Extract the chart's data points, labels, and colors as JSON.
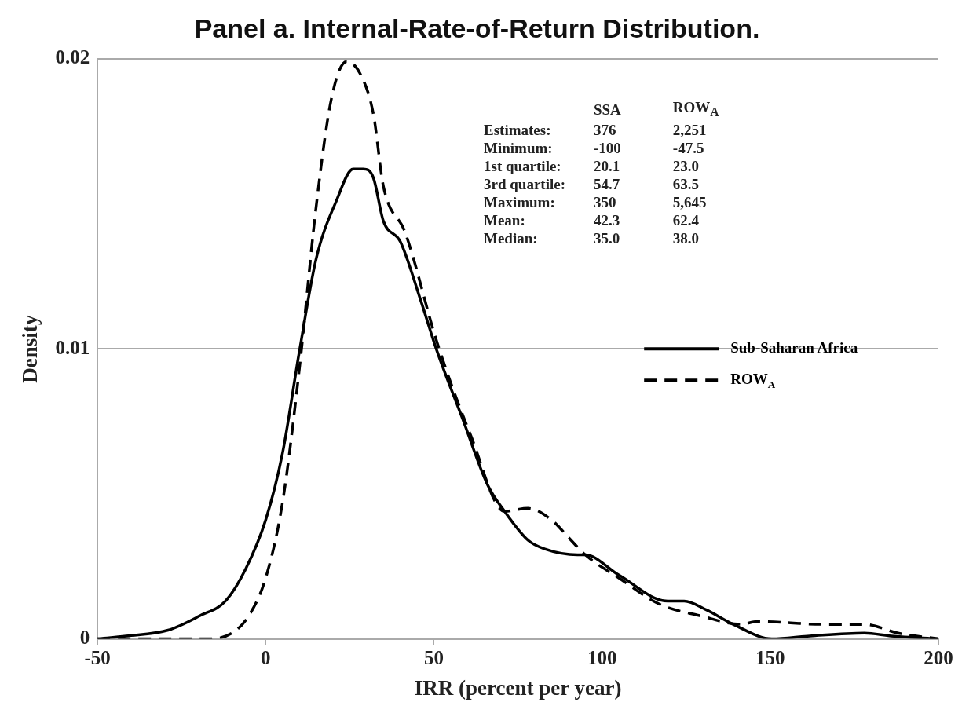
{
  "chart_data": {
    "type": "line",
    "title": "Panel a. Internal-Rate-of-Return Distribution.",
    "xlabel": "IRR (percent per year)",
    "ylabel": "Density",
    "xlim": [
      -50,
      200
    ],
    "xticks": [
      -50,
      0,
      50,
      100,
      150,
      200
    ],
    "ylim": [
      0,
      0.02
    ],
    "yticks": [
      0,
      0.01,
      0.02
    ],
    "grid": "y",
    "legend": "right",
    "marker": "none",
    "series": [
      {
        "name": "Sub-Saharan Africa",
        "color": "#000000",
        "line_style": "solid",
        "x": [
          -50,
          -41.5,
          -29,
          -19.5,
          -12,
          -6,
          0,
          5,
          10,
          15,
          21,
          26,
          29,
          32,
          35,
          40,
          46,
          51,
          58.5,
          66,
          71,
          78,
          83,
          92.7,
          95,
          105,
          119.5,
          124.4,
          131,
          139,
          150.5,
          161.7,
          178,
          186,
          200
        ],
        "values": [
          0,
          0.0001,
          0.0003,
          0.0008,
          0.0013,
          0.0024,
          0.0041,
          0.0064,
          0.0099,
          0.0131,
          0.0151,
          0.0162,
          0.0162,
          0.0159,
          0.0144,
          0.0137,
          0.0117,
          0.0099,
          0.0076,
          0.0053,
          0.0044,
          0.0034,
          0.0031,
          0.0029,
          0.0029,
          0.0022,
          0.0013,
          0.0013,
          0.001,
          0.0005,
          0,
          0.0001,
          0.0002,
          0.0001,
          0
        ]
      },
      {
        "name": "ROW$_{A}$",
        "color": "#000000",
        "line_style": "dashed",
        "x": [
          -50,
          -17,
          -10,
          -5,
          0,
          5,
          10,
          15,
          19.5,
          24,
          28,
          32,
          35,
          41.5,
          51,
          61,
          71,
          78,
          85,
          90,
          95,
          105,
          117,
          129,
          141.5,
          146,
          166,
          178,
          188,
          200
        ],
        "values": [
          0,
          0,
          0.0002,
          0.0008,
          0.0021,
          0.0047,
          0.0093,
          0.0149,
          0.0186,
          0.0199,
          0.0195,
          0.0181,
          0.0156,
          0.014,
          0.0102,
          0.007,
          0.0044,
          0.0045,
          0.0041,
          0.0035,
          0.0029,
          0.0021,
          0.0012,
          0.0008,
          0.0005,
          0.0006,
          0.0005,
          0.0005,
          0.0002,
          0
        ]
      }
    ],
    "annotations": [
      "SSA",
      "ROW$_{A}$",
      "Estimates:",
      "376",
      "2,251",
      "Minimum:",
      "-100",
      "-47.5",
      "1st quartile:",
      "20.1",
      "23.0",
      "3rd quartile:",
      "54.7",
      "63.5",
      "Maximum:",
      "350",
      "5,645",
      "Mean:",
      "42.3",
      "62.4",
      "Median:",
      "35.0",
      "38.0"
    ]
  }
}
